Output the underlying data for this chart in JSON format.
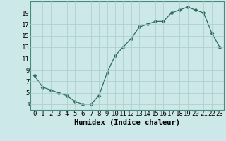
{
  "x": [
    0,
    1,
    2,
    3,
    4,
    5,
    6,
    7,
    8,
    9,
    10,
    11,
    12,
    13,
    14,
    15,
    16,
    17,
    18,
    19,
    20,
    21,
    22,
    23
  ],
  "y": [
    8,
    6,
    5.5,
    5,
    4.5,
    3.5,
    3,
    3,
    4.5,
    8.5,
    11.5,
    13,
    14.5,
    16.5,
    17,
    17.5,
    17.5,
    19,
    19.5,
    20,
    19.5,
    19,
    15.5,
    13
  ],
  "xlabel": "Humidex (Indice chaleur)",
  "xlim": [
    -0.5,
    23.5
  ],
  "ylim": [
    2,
    21
  ],
  "yticks": [
    3,
    5,
    7,
    9,
    11,
    13,
    15,
    17,
    19
  ],
  "xticks": [
    0,
    1,
    2,
    3,
    4,
    5,
    6,
    7,
    8,
    9,
    10,
    11,
    12,
    13,
    14,
    15,
    16,
    17,
    18,
    19,
    20,
    21,
    22,
    23
  ],
  "xtick_labels": [
    "0",
    "1",
    "2",
    "3",
    "4",
    "5",
    "6",
    "7",
    "8",
    "9",
    "10",
    "11",
    "12",
    "13",
    "14",
    "15",
    "16",
    "17",
    "18",
    "19",
    "20",
    "21",
    "22",
    "23"
  ],
  "line_color": "#2e6b5e",
  "marker": "D",
  "marker_size": 2.5,
  "bg_color": "#cce8e8",
  "grid_color": "#aacccc",
  "label_fontsize": 7.5,
  "tick_fontsize": 6.5
}
